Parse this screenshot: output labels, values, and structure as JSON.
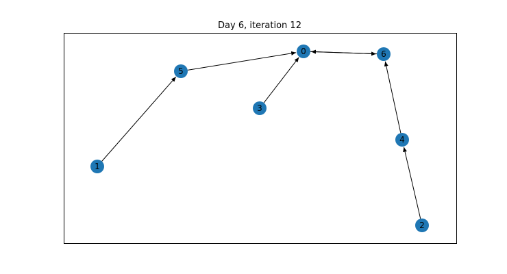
{
  "title": "Day 6, iteration 12",
  "colors": {
    "node_fill": "#1f77b4",
    "edge": "#000000",
    "frame": "#000000",
    "background": "#ffffff"
  },
  "graph": {
    "directed": true,
    "nodes": [
      {
        "id": "0",
        "label": "0"
      },
      {
        "id": "1",
        "label": "1"
      },
      {
        "id": "2",
        "label": "2"
      },
      {
        "id": "3",
        "label": "3"
      },
      {
        "id": "4",
        "label": "4"
      },
      {
        "id": "5",
        "label": "5"
      },
      {
        "id": "6",
        "label": "6"
      }
    ],
    "edges": [
      {
        "source": "1",
        "target": "5"
      },
      {
        "source": "5",
        "target": "0"
      },
      {
        "source": "3",
        "target": "0"
      },
      {
        "source": "0",
        "target": "6"
      },
      {
        "source": "6",
        "target": "0"
      },
      {
        "source": "4",
        "target": "6"
      },
      {
        "source": "2",
        "target": "4"
      }
    ]
  }
}
